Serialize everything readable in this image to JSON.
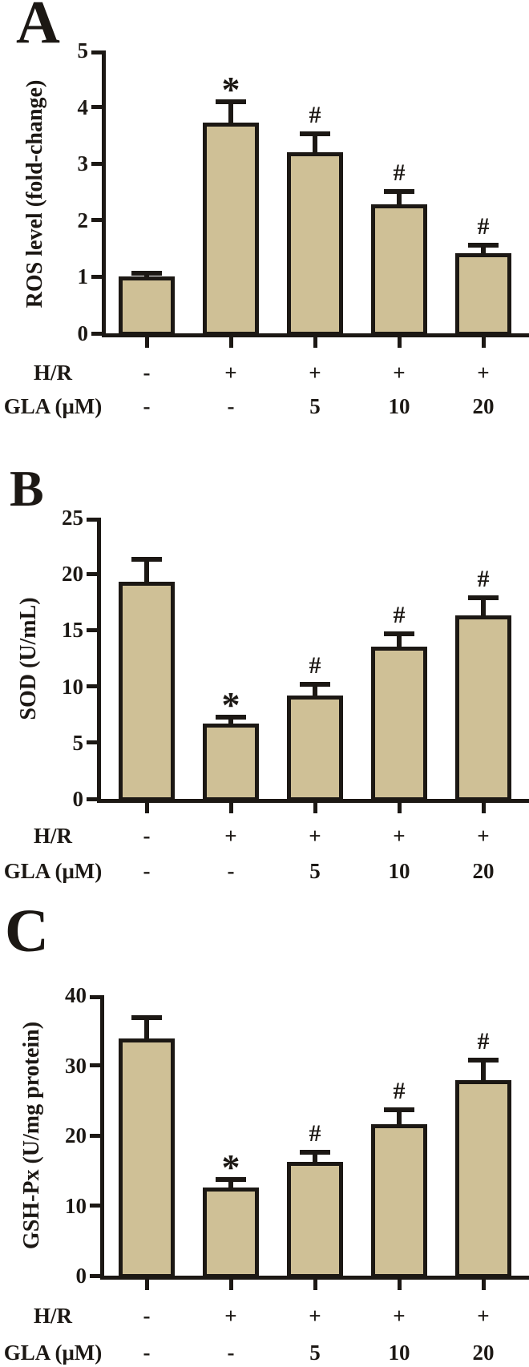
{
  "figure": {
    "background": "#ffffff",
    "bar_fill": "#cfc096",
    "ink": "#1c1814"
  },
  "chart_data": [
    {
      "type": "bar",
      "panel_label": "A",
      "ylabel": "ROS level (fold-change)",
      "ylim": [
        0,
        5
      ],
      "yticks": [
        0,
        1,
        2,
        3,
        4,
        5
      ],
      "grid": false,
      "legend": "none",
      "categories": [
        "H/R- GLA-",
        "H/R+ GLA-",
        "H/R+ GLA5",
        "H/R+ GLA10",
        "H/R+ GLA20"
      ],
      "values": [
        1.0,
        3.72,
        3.2,
        2.28,
        1.42
      ],
      "errors": [
        0.06,
        0.38,
        0.33,
        0.23,
        0.14
      ],
      "annotations": [
        "",
        "*",
        "#",
        "#",
        "#"
      ],
      "x_rows": [
        {
          "label": "H/R",
          "cells": [
            "-",
            "+",
            "+",
            "+",
            "+"
          ]
        },
        {
          "label": "GLA (μM)",
          "cells": [
            "-",
            "-",
            "5",
            "10",
            "20"
          ]
        }
      ]
    },
    {
      "type": "bar",
      "panel_label": "B",
      "ylabel": "SOD (U/mL)",
      "ylim": [
        0,
        25
      ],
      "yticks": [
        0,
        5,
        10,
        15,
        20,
        25
      ],
      "grid": false,
      "legend": "none",
      "categories": [
        "H/R- GLA-",
        "H/R+ GLA-",
        "H/R+ GLA5",
        "H/R+ GLA10",
        "H/R+ GLA20"
      ],
      "values": [
        19.3,
        6.7,
        9.2,
        13.5,
        16.3
      ],
      "errors": [
        2.0,
        0.6,
        0.95,
        1.2,
        1.6
      ],
      "annotations": [
        "",
        "*",
        "#",
        "#",
        "#"
      ],
      "x_rows": [
        {
          "label": "H/R",
          "cells": [
            "-",
            "+",
            "+",
            "+",
            "+"
          ]
        },
        {
          "label": "GLA (μM)",
          "cells": [
            "-",
            "-",
            "5",
            "10",
            "20"
          ]
        }
      ]
    },
    {
      "type": "bar",
      "panel_label": "C",
      "ylabel": "GSH-Px (U/mg protein)",
      "ylim": [
        0,
        40
      ],
      "yticks": [
        0,
        10,
        20,
        30,
        40
      ],
      "grid": false,
      "legend": "none",
      "categories": [
        "H/R- GLA-",
        "H/R+ GLA-",
        "H/R+ GLA5",
        "H/R+ GLA10",
        "H/R+ GLA20"
      ],
      "values": [
        33.8,
        12.6,
        16.2,
        21.6,
        27.9
      ],
      "errors": [
        3.0,
        1.1,
        1.4,
        2.1,
        2.9
      ],
      "annotations": [
        "",
        "*",
        "#",
        "#",
        "#"
      ],
      "x_rows": [
        {
          "label": "H/R",
          "cells": [
            "-",
            "+",
            "+",
            "+",
            "+"
          ]
        },
        {
          "label": "GLA (μM)",
          "cells": [
            "-",
            "-",
            "5",
            "10",
            "20"
          ]
        }
      ]
    }
  ]
}
